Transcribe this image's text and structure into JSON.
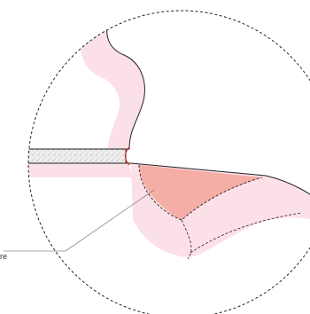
{
  "diagram": {
    "callout_label": "re",
    "colors": {
      "background": "#ffffff",
      "pink_layer": "#fce0e8",
      "highlight_region": "#f4aea5",
      "outline": "#222222",
      "dashed_border": "#222222",
      "leader_line": "#888888",
      "speckle_fill": "#efefef",
      "red_accent": "#d92020"
    }
  }
}
